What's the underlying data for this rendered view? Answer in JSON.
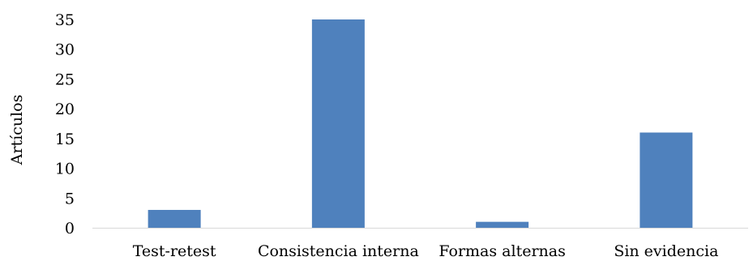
{
  "chart_data": {
    "type": "bar",
    "categories": [
      "Test-retest",
      "Consistencia interna",
      "Formas alternas",
      "Sin evidencia"
    ],
    "values": [
      3,
      35,
      1,
      16
    ],
    "title": "",
    "xlabel": "",
    "ylabel": "Artículos",
    "ylim": [
      0,
      35
    ],
    "yticks": [
      0,
      5,
      10,
      15,
      20,
      25,
      30,
      35
    ],
    "grid": false,
    "bar_color": "#4f81bd",
    "axis_color": "#d9d9d9"
  }
}
